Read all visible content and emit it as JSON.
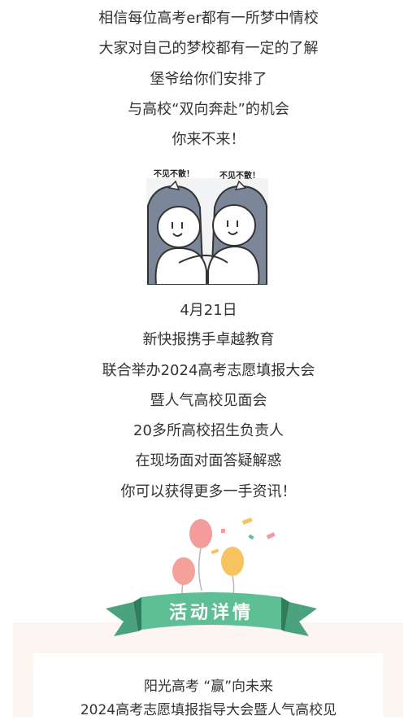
{
  "intro_lines": [
    "相信每位高考er都有一所梦中情校",
    "大家对自己的梦校都有一定的了解",
    "堡爷给你们安排了",
    "与高校“双向奔赴”的机会",
    "你来不来！"
  ],
  "sticker": {
    "left_caption": "不见不散！",
    "right_caption": "不见不散！"
  },
  "event_lines": [
    "4月21日",
    "新快报携手卓越教育",
    "联合举办2024高考志愿填报大会",
    "暨人气高校见面会",
    "20多所高校招生负责人",
    "在现场面对面答疑解惑",
    "你可以获得更多一手资讯！"
  ],
  "banner": {
    "title": "活动详情"
  },
  "card": {
    "line1": "阳光高考 “赢”向未来",
    "line2": "2024高考志愿填报指导大会暨人气高校见"
  },
  "colors": {
    "banner_green": "#5fbf94",
    "banner_dark": "#3e9c73",
    "panel_bg": "#fdf5ef",
    "balloon_pink": "#f49b9b",
    "balloon_yellow": "#f6c35f"
  }
}
